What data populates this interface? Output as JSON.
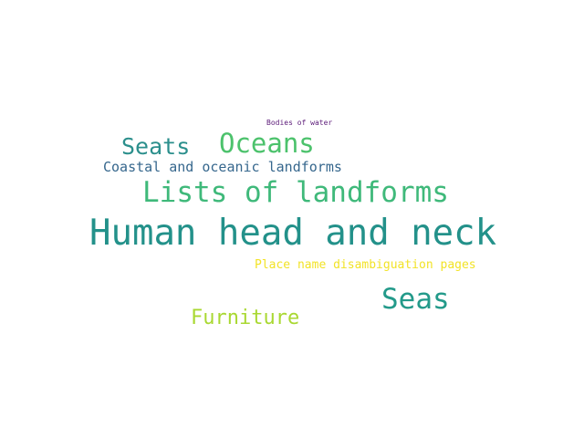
{
  "words": [
    {
      "id": "bodies",
      "text": "Bodies of water",
      "color": "#5b1a78"
    },
    {
      "id": "oceans",
      "text": "Oceans",
      "color": "#4cc26c"
    },
    {
      "id": "seats",
      "text": "Seats",
      "color": "#2b8f8c"
    },
    {
      "id": "coastal",
      "text": "Coastal and oceanic landforms",
      "color": "#36678d"
    },
    {
      "id": "lists",
      "text": "Lists of landforms",
      "color": "#3fb97a"
    },
    {
      "id": "human",
      "text": "Human head and neck",
      "color": "#23918a"
    },
    {
      "id": "place",
      "text": "Place name disambiguation pages",
      "color": "#f2e327"
    },
    {
      "id": "seas",
      "text": "Seas",
      "color": "#239a8a"
    },
    {
      "id": "furniture",
      "text": "Furniture",
      "color": "#a9d832"
    }
  ]
}
